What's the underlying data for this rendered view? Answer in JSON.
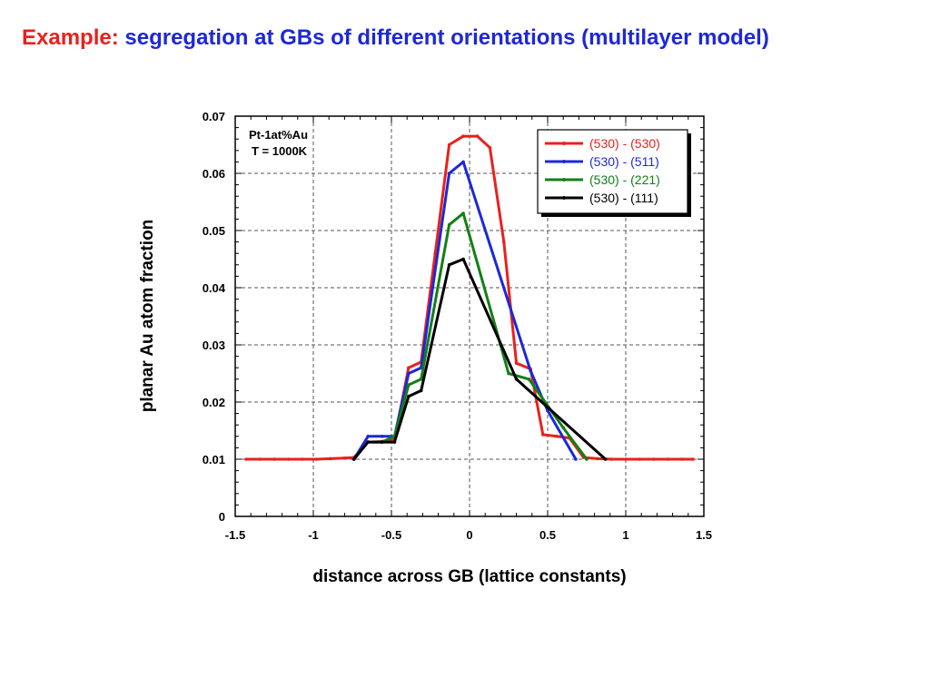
{
  "slide": {
    "title_prefix": "Example:",
    "title_main": "segregation at GBs of different orientations (multilayer model)"
  },
  "colors": {
    "title_prefix": "#e8211d",
    "title_main": "#1d28d6"
  },
  "chart_data": {
    "type": "line",
    "xlabel": "distance across GB (lattice constants)",
    "ylabel": "planar Au atom fraction",
    "xlim": [
      -1.5,
      1.5
    ],
    "ylim": [
      0,
      0.07
    ],
    "x_ticks": [
      "-1.5",
      "-1",
      "-0.5",
      "0",
      "0.5",
      "1",
      "1.5"
    ],
    "y_ticks": [
      "0",
      "0.01",
      "0.02",
      "0.03",
      "0.04",
      "0.05",
      "0.06",
      "0.07"
    ],
    "grid": true,
    "legend_position": "top-right",
    "annotations": [
      "Pt-1at%Au",
      "T = 1000K"
    ],
    "series": [
      {
        "name": "(530) - (530)",
        "color": "#e8211d",
        "x": [
          -1.43,
          -1.34,
          -1.25,
          -1.16,
          -1.07,
          -0.98,
          -0.89,
          -0.8,
          -0.74,
          -0.65,
          -0.56,
          -0.48,
          -0.39,
          -0.31,
          -0.22,
          -0.13,
          -0.04,
          0.05,
          0.13,
          0.22,
          0.3,
          0.39,
          0.47,
          0.56,
          0.64,
          0.73,
          0.82,
          0.91,
          1.0,
          1.09,
          1.18,
          1.27,
          1.36,
          1.43
        ],
        "y": [
          0.01,
          0.01,
          0.01,
          0.01,
          0.01,
          0.01,
          0.0101,
          0.0102,
          0.0103,
          0.013,
          0.0131,
          0.0135,
          0.026,
          0.027,
          0.046,
          0.065,
          0.0665,
          0.0665,
          0.0645,
          0.048,
          0.0268,
          0.0258,
          0.0143,
          0.014,
          0.0137,
          0.0103,
          0.0101,
          0.01,
          0.01,
          0.01,
          0.01,
          0.01,
          0.01,
          0.01
        ]
      },
      {
        "name": "(530) - (511)",
        "color": "#1d28d6",
        "x": [
          -0.74,
          -0.65,
          -0.56,
          -0.48,
          -0.39,
          -0.31,
          -0.13,
          -0.04,
          0.39,
          0.5,
          0.68
        ],
        "y": [
          0.01,
          0.014,
          0.014,
          0.014,
          0.025,
          0.026,
          0.06,
          0.062,
          0.0255,
          0.0185,
          0.01
        ]
      },
      {
        "name": "(530) - (221)",
        "color": "#118015",
        "x": [
          -0.74,
          -0.65,
          -0.56,
          -0.48,
          -0.39,
          -0.31,
          -0.13,
          -0.04,
          0.25,
          0.38,
          0.6,
          0.75
        ],
        "y": [
          0.01,
          0.013,
          0.013,
          0.014,
          0.023,
          0.024,
          0.051,
          0.053,
          0.025,
          0.024,
          0.0155,
          0.01
        ]
      },
      {
        "name": "(530) - (111)",
        "color": "#000000",
        "x": [
          -0.74,
          -0.65,
          -0.56,
          -0.48,
          -0.39,
          -0.31,
          -0.13,
          -0.04,
          0.3,
          0.87
        ],
        "y": [
          0.01,
          0.013,
          0.013,
          0.013,
          0.021,
          0.022,
          0.044,
          0.045,
          0.024,
          0.01
        ]
      }
    ]
  }
}
